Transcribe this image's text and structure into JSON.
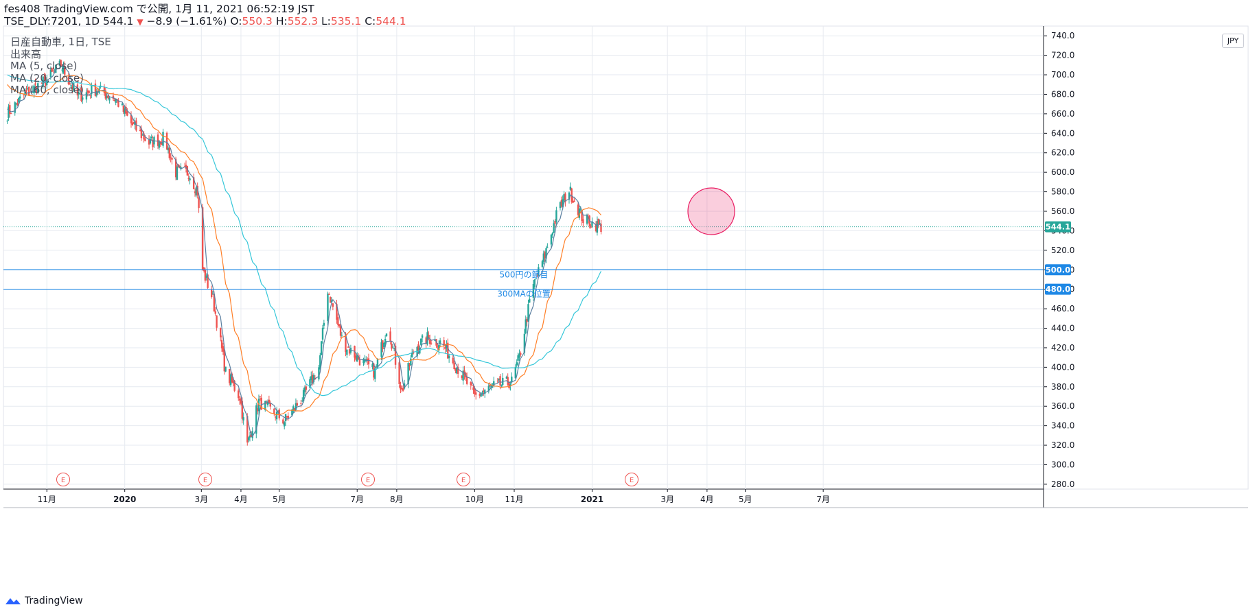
{
  "header": {
    "line1": "fes408 TradingView.com で公開, 1月 11, 2021 06:52:19 JST",
    "symbol": "TSE_DLY:7201, 1D 544.1",
    "change_arrow": "▼",
    "change": "−8.9 (−1.61%)",
    "o_label": "O:",
    "o_value": "550.3",
    "h_label": "H:",
    "h_value": "552.3",
    "l_label": "L:",
    "l_value": "535.1",
    "c_label": "C:",
    "c_value": "544.1"
  },
  "legend": {
    "title": "日産自動車, 1日, TSE",
    "volume": "出来高",
    "ma5": "MA (5, close)",
    "ma20": "MA (20, close)",
    "ma60": "MA (60, close)"
  },
  "currency": "JPY",
  "footer": {
    "brand": "TradingView"
  },
  "colors": {
    "up": "#26a69a",
    "down": "#ef5350",
    "ma5": "#5b7fa0",
    "ma20": "#ff7f27",
    "ma60": "#36c7d9",
    "hline": "#1e88e5",
    "grid": "#e6eaf0",
    "circle": "#e91e63"
  },
  "chart_data": {
    "type": "candlestick",
    "ylim": [
      275,
      750
    ],
    "y_ticks": [
      280,
      300,
      320,
      340,
      360,
      380,
      400,
      420,
      440,
      460,
      480,
      500,
      520,
      540,
      560,
      580,
      600,
      620,
      640,
      660,
      680,
      700,
      720,
      740
    ],
    "x_ticks": [
      "11月",
      "2020",
      "3月",
      "4月",
      "5月",
      "7月",
      "8月",
      "10月",
      "11月",
      "2021",
      "3月",
      "4月",
      "5月",
      "7月"
    ],
    "last_price": "544.1",
    "horizontal_lines": [
      {
        "value": 500.0,
        "label": "500円の節目",
        "axis_label": "500.0"
      },
      {
        "value": 480.0,
        "label": "300MAの位置",
        "axis_label": "480.0"
      }
    ],
    "earnings_markers": [
      "E",
      "E",
      "E",
      "E",
      "E"
    ],
    "price_path": [
      [
        "2019-10-01",
        660
      ],
      [
        "2019-10-15",
        680
      ],
      [
        "2019-11-01",
        695
      ],
      [
        "2019-11-12",
        710
      ],
      [
        "2019-11-25",
        678
      ],
      [
        "2019-12-10",
        685
      ],
      [
        "2019-12-25",
        675
      ],
      [
        "2020-01-06",
        650
      ],
      [
        "2020-01-20",
        630
      ],
      [
        "2020-02-01",
        635
      ],
      [
        "2020-02-10",
        600
      ],
      [
        "2020-02-20",
        600
      ],
      [
        "2020-02-27",
        580
      ],
      [
        "2020-03-02",
        500
      ],
      [
        "2020-03-10",
        470
      ],
      [
        "2020-03-20",
        395
      ],
      [
        "2020-03-31",
        370
      ],
      [
        "2020-04-06",
        320
      ],
      [
        "2020-04-15",
        365
      ],
      [
        "2020-04-25",
        355
      ],
      [
        "2020-05-05",
        345
      ],
      [
        "2020-05-20",
        370
      ],
      [
        "2020-06-01",
        400
      ],
      [
        "2020-06-08",
        480
      ],
      [
        "2020-06-20",
        425
      ],
      [
        "2020-07-01",
        410
      ],
      [
        "2020-07-15",
        395
      ],
      [
        "2020-07-25",
        445
      ],
      [
        "2020-08-05",
        375
      ],
      [
        "2020-08-15",
        420
      ],
      [
        "2020-08-25",
        430
      ],
      [
        "2020-09-05",
        425
      ],
      [
        "2020-09-20",
        395
      ],
      [
        "2020-10-01",
        370
      ],
      [
        "2020-10-15",
        380
      ],
      [
        "2020-10-30",
        385
      ],
      [
        "2020-11-05",
        410
      ],
      [
        "2020-11-15",
        480
      ],
      [
        "2020-11-25",
        515
      ],
      [
        "2020-12-05",
        560
      ],
      [
        "2020-12-14",
        582
      ],
      [
        "2020-12-25",
        552
      ],
      [
        "2021-01-08",
        544
      ]
    ],
    "ma_series": [
      {
        "name": "MA (5, close)",
        "period": 5
      },
      {
        "name": "MA (20, close)",
        "period": 20
      },
      {
        "name": "MA (60, close)",
        "period": 60
      }
    ]
  }
}
